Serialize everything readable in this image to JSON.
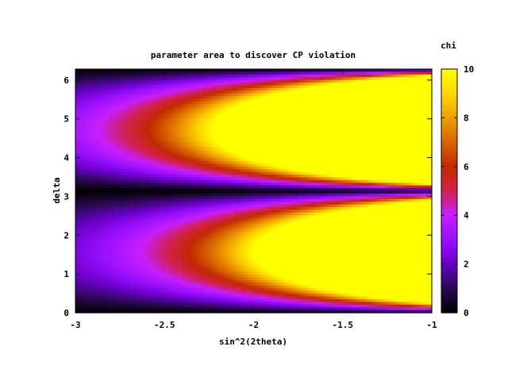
{
  "chart_data": {
    "type": "heatmap",
    "title": "parameter area to discover CP violation",
    "xlabel": "sin^2(2theta)",
    "ylabel": "delta",
    "colorbar_label": "chi",
    "xlim": [
      -3,
      -1
    ],
    "ylim": [
      0,
      6.2832
    ],
    "zlim": [
      0,
      10
    ],
    "x_ticks": [
      -3,
      -2.5,
      -2,
      -1.5,
      -1
    ],
    "x_tick_labels": [
      "-3",
      "-2.5",
      "-2",
      "-1.5",
      "-1"
    ],
    "y_ticks": [
      0,
      1,
      2,
      3,
      4,
      5,
      6
    ],
    "y_tick_labels": [
      "0",
      "1",
      "2",
      "3",
      "4",
      "5",
      "6"
    ],
    "cb_ticks": [
      0,
      2,
      4,
      6,
      8,
      10
    ],
    "cb_tick_labels": [
      "0",
      "2",
      "4",
      "6",
      "8",
      "10"
    ],
    "palette": [
      "#000000",
      "#2a0a52",
      "#6a00c8",
      "#9a10ff",
      "#c51fff",
      "#d3204e",
      "#c12a00",
      "#d96400",
      "#eda000",
      "#ffd500",
      "#ffff00"
    ],
    "model": "chi = 10^(x+3) * |sin(delta)| scaled; yellow region at chi>=10, minimum along delta = 0, pi, 2pi",
    "z_samples": {
      "x": [
        -3,
        -2.5,
        -2,
        -1.5,
        -1
      ],
      "delta": [
        0,
        0.785,
        1.571,
        2.356,
        3.142,
        3.927,
        4.712,
        5.498,
        6.283
      ],
      "z": [
        [
          0.0,
          1.2,
          2.4,
          1.2,
          0.0,
          1.6,
          3.3,
          1.6,
          0.0
        ],
        [
          0.0,
          3.7,
          5.4,
          3.7,
          0.0,
          5.1,
          7.3,
          5.1,
          0.0
        ],
        [
          0.0,
          7.8,
          10,
          7.8,
          0.0,
          10,
          10,
          10,
          0.0
        ],
        [
          0.0,
          10,
          10,
          10,
          0.0,
          10,
          10,
          10,
          0.0
        ],
        [
          0.0,
          10,
          10,
          10,
          0.0,
          10,
          10,
          10,
          0.0
        ]
      ]
    }
  }
}
